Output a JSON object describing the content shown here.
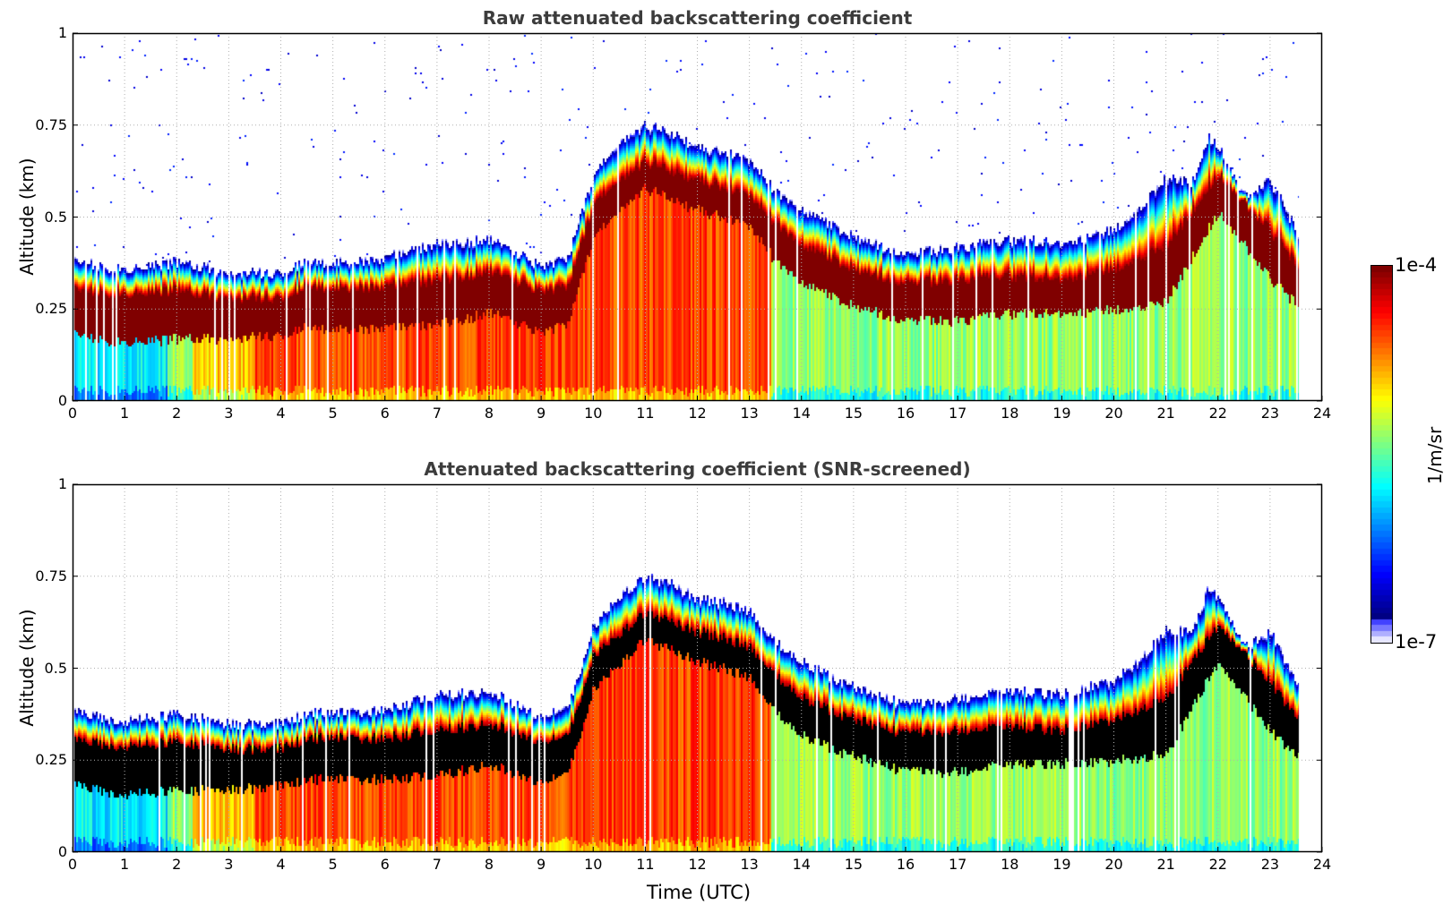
{
  "figure": {
    "xlabel": "Time (UTC)",
    "colorbar": {
      "label": "1/m/sr",
      "max_label": "1e-4",
      "min_label": "1e-7",
      "scale": "log",
      "range": [
        1e-07,
        0.0001
      ],
      "colormap": "jet (white-blue low end)"
    }
  },
  "chart_data": [
    {
      "type": "heatmap",
      "title": "Raw attenuated backscattering coefficient",
      "xlabel": "",
      "ylabel": "Altitude (km)",
      "xlim": [
        0,
        24
      ],
      "ylim": [
        0,
        1
      ],
      "xticks": [
        "0",
        "1",
        "2",
        "3",
        "4",
        "5",
        "6",
        "7",
        "8",
        "9",
        "10",
        "11",
        "12",
        "13",
        "14",
        "15",
        "16",
        "17",
        "18",
        "19",
        "20",
        "21",
        "22",
        "23",
        "24"
      ],
      "yticks": [
        "0",
        "0.25",
        "0.5",
        "0.75",
        "1"
      ],
      "grid": true,
      "data_end_hour": 23.55,
      "layer_top_km": {
        "hours": [
          0,
          0.5,
          1,
          2,
          3,
          4,
          4.5,
          5,
          6,
          7,
          8,
          9,
          9.5,
          10,
          10.5,
          11,
          11.5,
          12,
          12.5,
          13,
          13.5,
          14,
          15,
          16,
          17,
          18,
          19,
          20,
          20.5,
          21,
          21.5,
          21.8,
          22,
          22.5,
          23,
          23.55
        ],
        "values": [
          0.38,
          0.37,
          0.36,
          0.38,
          0.35,
          0.35,
          0.38,
          0.38,
          0.39,
          0.43,
          0.44,
          0.37,
          0.39,
          0.62,
          0.7,
          0.75,
          0.73,
          0.69,
          0.68,
          0.66,
          0.57,
          0.52,
          0.45,
          0.4,
          0.42,
          0.44,
          0.43,
          0.47,
          0.53,
          0.61,
          0.6,
          0.72,
          0.7,
          0.56,
          0.6,
          0.45
        ]
      },
      "saturated_band_km": {
        "hours": [
          0,
          1,
          2,
          3,
          4,
          4.5,
          5,
          6,
          7,
          8,
          9,
          9.5,
          10,
          11,
          12,
          13,
          13.5,
          14,
          15,
          16,
          17,
          18,
          19,
          20,
          21,
          22,
          23,
          23.55
        ],
        "top": [
          0.3,
          0.29,
          0.3,
          0.28,
          0.28,
          0.31,
          0.31,
          0.31,
          0.33,
          0.35,
          0.3,
          0.31,
          0.54,
          0.65,
          0.6,
          0.56,
          0.48,
          0.42,
          0.36,
          0.32,
          0.33,
          0.34,
          0.33,
          0.36,
          0.42,
          0.62,
          0.46,
          0.36
        ],
        "bottom": [
          0.18,
          0.16,
          0.17,
          0.17,
          0.18,
          0.2,
          0.2,
          0.2,
          0.21,
          0.24,
          0.19,
          0.21,
          0.45,
          0.58,
          0.52,
          0.48,
          0.38,
          0.32,
          0.26,
          0.22,
          0.22,
          0.24,
          0.24,
          0.25,
          0.27,
          0.52,
          0.33,
          0.26
        ]
      },
      "surface_layer_regime": [
        {
          "from": 0,
          "to": 2,
          "level": "low (cyan/blue)"
        },
        {
          "from": 2,
          "to": 3.5,
          "level": "medium (yellow)"
        },
        {
          "from": 3.5,
          "to": 13.4,
          "level": "high (orange/red)"
        },
        {
          "from": 13.4,
          "to": 23.55,
          "level": "medium-low (green/cyan)"
        }
      ],
      "note": "Scattered low-intensity noise pixels above the layer, most dense at 10-11.5 h and 21.5-23.5 h"
    },
    {
      "type": "heatmap",
      "title": "Attenuated backscattering coefficient (SNR-screened)",
      "xlabel": "Time (UTC)",
      "ylabel": "Altitude (km)",
      "xlim": [
        0,
        24
      ],
      "ylim": [
        0,
        1
      ],
      "xticks": [
        "0",
        "1",
        "2",
        "3",
        "4",
        "5",
        "6",
        "7",
        "8",
        "9",
        "10",
        "11",
        "12",
        "13",
        "14",
        "15",
        "16",
        "17",
        "18",
        "19",
        "20",
        "21",
        "22",
        "23",
        "24"
      ],
      "yticks": [
        "0",
        "0.25",
        "0.5",
        "0.75",
        "1"
      ],
      "grid": true,
      "data_end_hour": 23.55,
      "screened_value_color": "#000000",
      "note": "Same field as upper panel; saturated band rendered black, noise above layer removed"
    }
  ]
}
